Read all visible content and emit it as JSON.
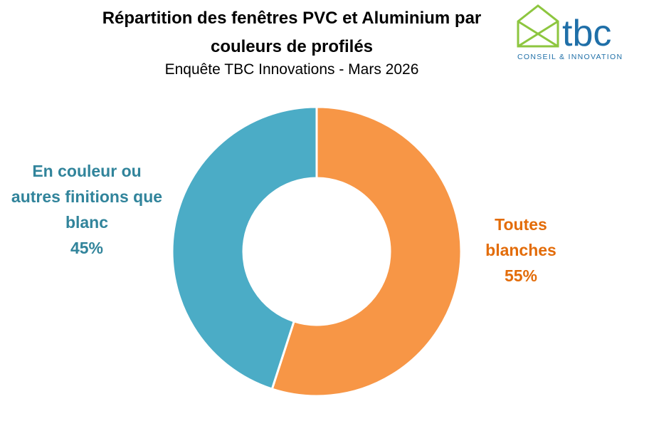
{
  "chart_data": {
    "type": "donut",
    "title": "Répartition des fenêtres PVC et Aluminium par couleurs de profilés",
    "subtitle": "Enquête TBC Innovations - Mars 2026",
    "categories": [
      "Toutes blanches",
      "En couleur ou autres finitions que blanc"
    ],
    "values": [
      55,
      45
    ],
    "value_labels": [
      "55%",
      "45%"
    ],
    "colors": [
      "#f79646",
      "#4bacc6"
    ],
    "label_colors": [
      "#e36c09",
      "#31849b"
    ]
  },
  "logo": {
    "name": "tbc",
    "tagline": "CONSEIL & INNOVATION"
  }
}
